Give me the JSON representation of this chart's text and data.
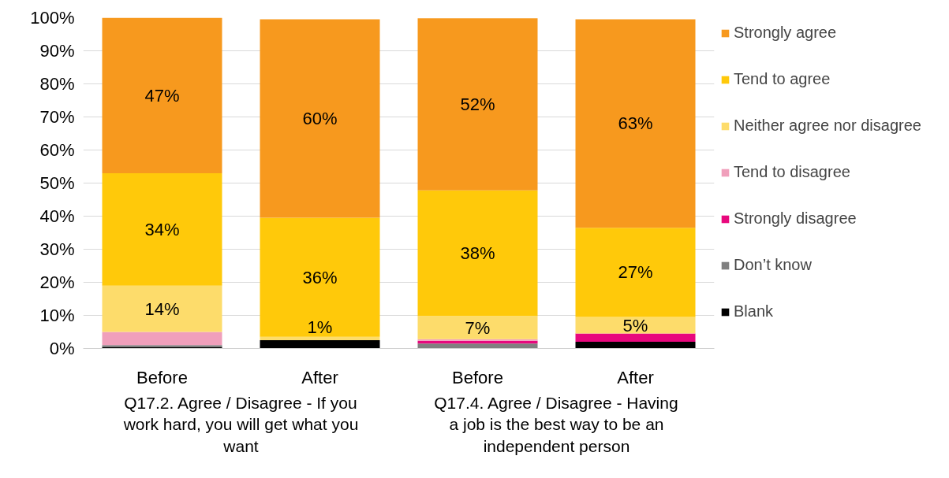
{
  "chart_data": {
    "type": "bar",
    "stacked": true,
    "categories": [
      "Before",
      "After",
      "Before",
      "After"
    ],
    "series": [
      {
        "name": "Blank",
        "color": "#000000",
        "values": [
          0.5,
          2.5,
          0,
          2
        ]
      },
      {
        "name": "Don’t know",
        "color": "#808080",
        "values": [
          0.5,
          0,
          1.5,
          0
        ]
      },
      {
        "name": "Strongly disagree",
        "color": "#e8087d",
        "values": [
          0,
          0,
          0.8,
          2.5
        ]
      },
      {
        "name": "Tend to disagree",
        "color": "#f09fbb",
        "values": [
          4,
          0,
          0.5,
          0
        ]
      },
      {
        "name": "Neither agree nor disagree",
        "color": "#fddc6b",
        "values": [
          14,
          1,
          7,
          5
        ],
        "value_labels": [
          "14%",
          "1%",
          "7%",
          "5%"
        ]
      },
      {
        "name": "Tend to agree",
        "color": "#ffc90a",
        "values": [
          34,
          36,
          38,
          27
        ],
        "value_labels": [
          "34%",
          "36%",
          "38%",
          "27%"
        ]
      },
      {
        "name": "Strongly agree",
        "color": "#f7991e",
        "values": [
          47,
          60,
          52,
          63
        ],
        "value_labels": [
          "47%",
          "60%",
          "52%",
          "63%"
        ]
      }
    ],
    "ylim": [
      0,
      100
    ],
    "yticks": [
      {
        "value": 0,
        "label": "0%"
      },
      {
        "value": 10,
        "label": "10%"
      },
      {
        "value": 20,
        "label": "20%"
      },
      {
        "value": 30,
        "label": "30%"
      },
      {
        "value": 40,
        "label": "40%"
      },
      {
        "value": 50,
        "label": "50%"
      },
      {
        "value": 60,
        "label": "60%"
      },
      {
        "value": 70,
        "label": "70%"
      },
      {
        "value": 80,
        "label": "80%"
      },
      {
        "value": 90,
        "label": "90%"
      },
      {
        "value": 100,
        "label": "100%"
      }
    ],
    "grid": "y",
    "legend": "right",
    "annotations": [
      "Q17.2. Agree / Disagree - If you work hard, you will get what you want",
      "Q17.4. Agree / Disagree - Having a job is the best way to be an independent person"
    ]
  }
}
